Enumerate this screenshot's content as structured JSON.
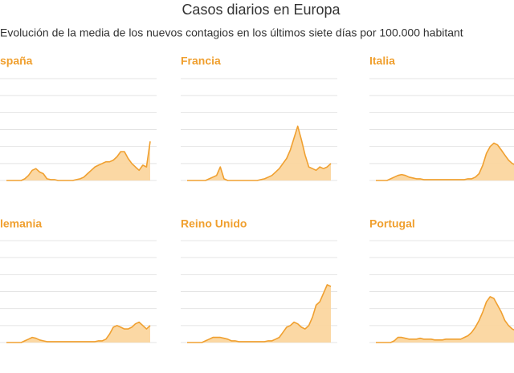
{
  "header": {
    "title": "Casos diarios en Europa",
    "subtitle": "Evolución de la media de los nuevos contagios en los últimos siete días por 100.000 habitant"
  },
  "chart_data": [
    {
      "type": "area",
      "title": "spaña",
      "color": "#f0a030",
      "ylim": [
        0,
        6
      ],
      "yticks": [
        0,
        1,
        2,
        3,
        4,
        5,
        6
      ],
      "grid": true,
      "values": [
        0,
        0,
        0,
        0,
        0,
        0.1,
        0.3,
        0.6,
        0.7,
        0.5,
        0.4,
        0.1,
        0.05,
        0.05,
        0,
        0,
        0,
        0,
        0,
        0.05,
        0.1,
        0.2,
        0.4,
        0.6,
        0.8,
        0.9,
        1.0,
        1.1,
        1.1,
        1.2,
        1.4,
        1.7,
        1.7,
        1.3,
        1.0,
        0.8,
        0.6,
        0.9,
        0.8,
        2.3
      ]
    },
    {
      "type": "area",
      "title": "Francia",
      "color": "#f0a030",
      "ylim": [
        0,
        6
      ],
      "yticks": [
        0,
        1,
        2,
        3,
        4,
        5,
        6
      ],
      "grid": true,
      "values": [
        0,
        0,
        0,
        0,
        0,
        0,
        0.1,
        0.2,
        0.3,
        0.8,
        0.1,
        0,
        0,
        0,
        0,
        0,
        0,
        0,
        0,
        0,
        0.05,
        0.1,
        0.2,
        0.3,
        0.5,
        0.7,
        1.0,
        1.3,
        1.8,
        2.5,
        3.2,
        2.4,
        1.5,
        0.8,
        0.7,
        0.6,
        0.8,
        0.7,
        0.8,
        1.0
      ]
    },
    {
      "type": "area",
      "title": "Italia",
      "color": "#f0a030",
      "ylim": [
        0,
        6
      ],
      "yticks": [
        0,
        1,
        2,
        3,
        4,
        5,
        6
      ],
      "grid": true,
      "values": [
        0,
        0,
        0,
        0,
        0.1,
        0.2,
        0.3,
        0.35,
        0.3,
        0.2,
        0.15,
        0.1,
        0.1,
        0.05,
        0.05,
        0.05,
        0.05,
        0.05,
        0.05,
        0.05,
        0.05,
        0.05,
        0.05,
        0.05,
        0.05,
        0.1,
        0.1,
        0.2,
        0.4,
        0.9,
        1.6,
        2.0,
        2.2,
        2.1,
        1.8,
        1.5,
        1.2,
        1.0,
        0.9,
        0.9
      ]
    },
    {
      "type": "area",
      "title": "lemania",
      "color": "#f0a030",
      "ylim": [
        0,
        6
      ],
      "yticks": [
        0,
        1,
        2,
        3,
        4,
        5,
        6
      ],
      "grid": true,
      "values": [
        0,
        0,
        0,
        0,
        0,
        0.1,
        0.2,
        0.3,
        0.25,
        0.15,
        0.1,
        0.05,
        0.05,
        0.05,
        0.05,
        0.05,
        0.05,
        0.05,
        0.05,
        0.05,
        0.05,
        0.05,
        0.05,
        0.05,
        0.05,
        0.1,
        0.1,
        0.2,
        0.5,
        0.9,
        1.0,
        0.9,
        0.8,
        0.8,
        0.9,
        1.1,
        1.2,
        1.0,
        0.8,
        1.0
      ]
    },
    {
      "type": "area",
      "title": "Reino Unido",
      "color": "#f0a030",
      "ylim": [
        0,
        6
      ],
      "yticks": [
        0,
        1,
        2,
        3,
        4,
        5,
        6
      ],
      "grid": true,
      "values": [
        0,
        0,
        0,
        0,
        0,
        0.1,
        0.2,
        0.3,
        0.3,
        0.3,
        0.25,
        0.2,
        0.1,
        0.1,
        0.05,
        0.05,
        0.05,
        0.05,
        0.05,
        0.05,
        0.05,
        0.05,
        0.1,
        0.1,
        0.2,
        0.3,
        0.6,
        0.9,
        1.0,
        1.2,
        1.1,
        0.9,
        0.8,
        1.0,
        1.5,
        2.2,
        2.4,
        2.9,
        3.4,
        3.3
      ]
    },
    {
      "type": "area",
      "title": "Portugal",
      "color": "#f0a030",
      "ylim": [
        0,
        6
      ],
      "yticks": [
        0,
        1,
        2,
        3,
        4,
        5,
        6
      ],
      "grid": true,
      "values": [
        0,
        0,
        0,
        0,
        0,
        0.1,
        0.3,
        0.3,
        0.25,
        0.2,
        0.2,
        0.2,
        0.25,
        0.2,
        0.2,
        0.2,
        0.15,
        0.15,
        0.15,
        0.2,
        0.2,
        0.2,
        0.2,
        0.2,
        0.3,
        0.4,
        0.6,
        0.9,
        1.3,
        1.8,
        2.4,
        2.7,
        2.6,
        2.2,
        1.8,
        1.3,
        1.0,
        0.8,
        0.7,
        0.6
      ]
    }
  ]
}
